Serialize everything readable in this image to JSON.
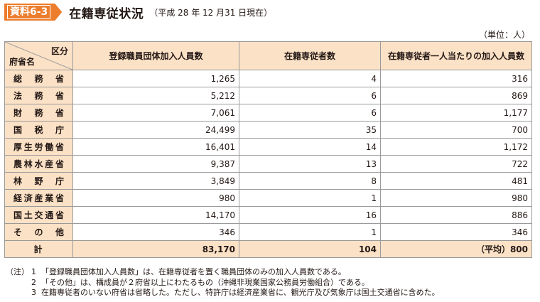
{
  "header": {
    "badge": "資料6-3",
    "title": "在籍専従状況",
    "subtitle": "（平成 28 年 12 月31 日現在）"
  },
  "unit": "（単位：人）",
  "table": {
    "corner_top": "区分",
    "corner_bottom": "府省名",
    "columns": [
      "登録職員団体加入人員数",
      "在籍専従者数",
      "在籍専従者一人当たりの加入人員数"
    ],
    "rows": [
      {
        "name": "総務省",
        "members": "1,265",
        "officers": "4",
        "per": "316"
      },
      {
        "name": "法務省",
        "members": "5,212",
        "officers": "6",
        "per": "869"
      },
      {
        "name": "財務省",
        "members": "7,061",
        "officers": "6",
        "per": "1,177"
      },
      {
        "name": "国税庁",
        "members": "24,499",
        "officers": "35",
        "per": "700"
      },
      {
        "name": "厚生労働省",
        "members": "16,401",
        "officers": "14",
        "per": "1,172"
      },
      {
        "name": "農林水産省",
        "members": "9,387",
        "officers": "13",
        "per": "722"
      },
      {
        "name": "林野庁",
        "members": "3,849",
        "officers": "8",
        "per": "481"
      },
      {
        "name": "経済産業省",
        "members": "980",
        "officers": "1",
        "per": "980"
      },
      {
        "name": "国土交通省",
        "members": "14,170",
        "officers": "16",
        "per": "886"
      },
      {
        "name": "その他",
        "members": "346",
        "officers": "1",
        "per": "346"
      }
    ],
    "total": {
      "name": "計",
      "members": "83,170",
      "officers": "104",
      "per": "（平均）800"
    }
  },
  "notes": {
    "lead": "（注）",
    "items": [
      {
        "idx": "1",
        "text": "「登録職員団体加入人員数」は、在籍専従者を置く職員団体のみの加入人員数である。"
      },
      {
        "idx": "2",
        "text": "「その他」は、構成員が２府省以上にわたるもの（沖縄非現業国家公務員労働組合）である。"
      },
      {
        "idx": "3",
        "text": "在籍専従者のいない府省は省略した。ただし、特許庁は経済産業省に、観光庁及び気象庁は国土交通省に含めた。"
      }
    ]
  },
  "colors": {
    "accent": "#ec7d2c",
    "header_fill": "#fbe1c6",
    "grid": "#9a9a9a"
  }
}
